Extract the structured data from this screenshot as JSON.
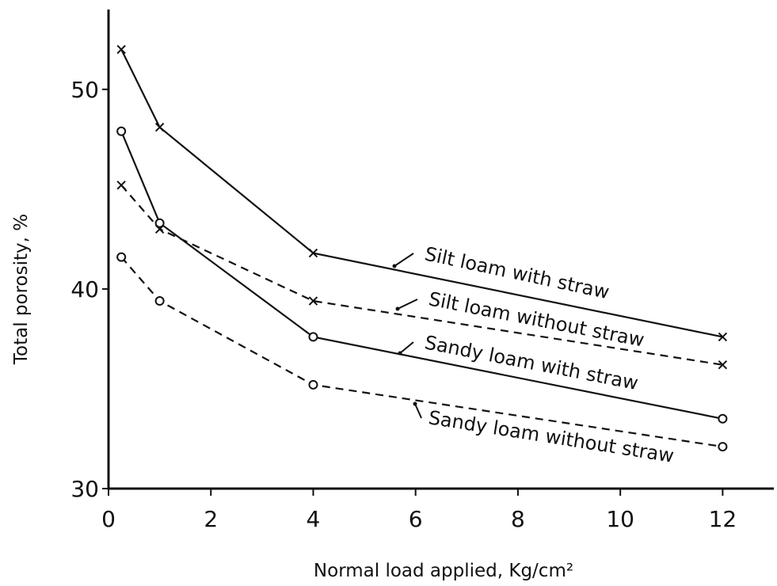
{
  "chart_data": {
    "type": "line",
    "xlabel": "Normal load applied, Kg/cm²",
    "ylabel": "Total porosity, %",
    "xlim": [
      0,
      13
    ],
    "ylim": [
      30,
      54
    ],
    "xticks": [
      0,
      2,
      4,
      6,
      8,
      10,
      12
    ],
    "yticks": [
      30,
      40,
      50
    ],
    "x": [
      0.25,
      1,
      4,
      12
    ],
    "series": [
      {
        "name": "Silt loam with straw",
        "color": "#111111",
        "marker": "x",
        "linestyle": "solid",
        "values": [
          52.0,
          48.1,
          41.8,
          37.6
        ]
      },
      {
        "name": "Silt loam without straw",
        "color": "#111111",
        "marker": "x",
        "linestyle": "dashed",
        "values": [
          45.2,
          43.0,
          39.4,
          36.2
        ]
      },
      {
        "name": "Sandy loam with straw",
        "color": "#111111",
        "marker": "o",
        "linestyle": "solid",
        "values": [
          47.9,
          43.3,
          37.6,
          33.5
        ]
      },
      {
        "name": "Sandy loam without straw",
        "color": "#111111",
        "marker": "o",
        "linestyle": "dashed",
        "values": [
          41.6,
          39.4,
          35.2,
          32.1
        ]
      }
    ]
  }
}
